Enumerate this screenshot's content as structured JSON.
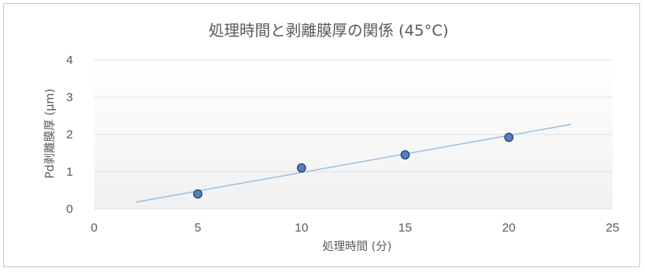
{
  "chart_data": {
    "type": "scatter",
    "title": "処理時間と剥離膜厚の関係 (45°C)",
    "xlabel": "処理時間 (分)",
    "ylabel": "Pd剥離膜厚 (μm)",
    "xlim": [
      0,
      25
    ],
    "ylim": [
      0,
      4
    ],
    "x_ticks": [
      "0",
      "5",
      "10",
      "15",
      "20",
      "25"
    ],
    "y_ticks": [
      "0",
      "1",
      "2",
      "3",
      "4"
    ],
    "grid": "horizontal",
    "legend": "none",
    "series": [
      {
        "points": [
          {
            "x": 5,
            "y": 0.4
          },
          {
            "x": 10,
            "y": 1.1
          },
          {
            "x": 15,
            "y": 1.45
          },
          {
            "x": 20,
            "y": 1.92
          }
        ]
      }
    ],
    "trendline": {
      "type": "linear",
      "x_range": [
        2,
        23
      ],
      "y_range": [
        0.18,
        2.27
      ]
    },
    "colors": {
      "marker_fill": "#5b7fb8",
      "marker_edge": "#2f4e80",
      "trendline": "#9fbfde",
      "gridline": "#e0e0e0",
      "text": "#595959"
    }
  }
}
